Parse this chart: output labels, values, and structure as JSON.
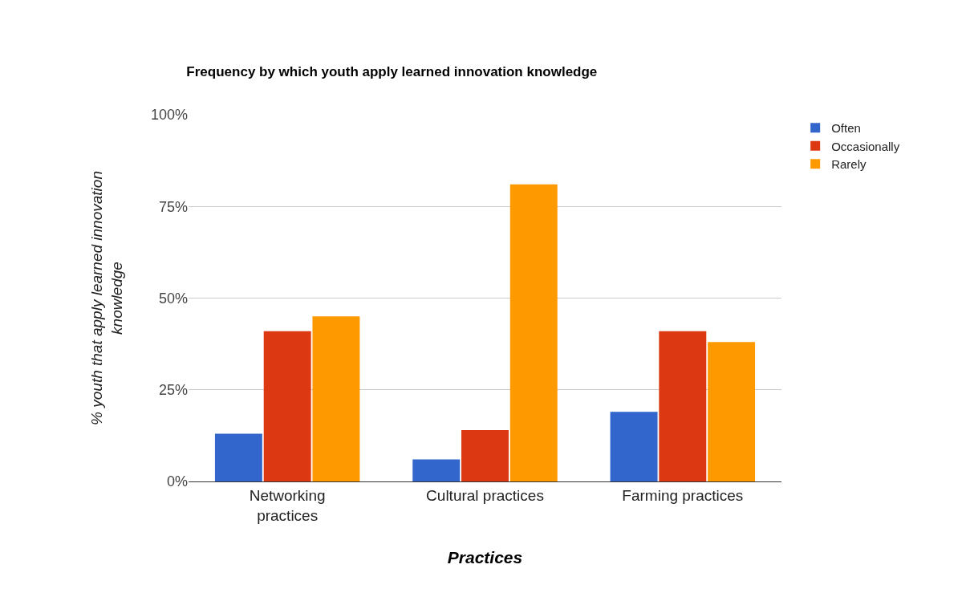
{
  "chart_data": {
    "type": "bar",
    "title": "Frequency by which youth apply learned innovation knowledge",
    "xlabel": "Practices",
    "ylabel": "% youth that apply learned innovation knowledge",
    "categories": [
      "Networking practices",
      "Cultural practices",
      "Farming practices"
    ],
    "series": [
      {
        "name": "Often",
        "color": "#3366cc",
        "values": [
          13,
          6,
          19
        ]
      },
      {
        "name": "Occasionally",
        "color": "#dc3912",
        "values": [
          41,
          14,
          41
        ]
      },
      {
        "name": "Rarely",
        "color": "#ff9900",
        "values": [
          45,
          81,
          38
        ]
      }
    ],
    "ylim": [
      0,
      100
    ],
    "yticks": [
      {
        "value": 0,
        "label": "0%"
      },
      {
        "value": 25,
        "label": "25%"
      },
      {
        "value": 50,
        "label": "50%"
      },
      {
        "value": 75,
        "label": "75%"
      },
      {
        "value": 100,
        "label": "100%"
      }
    ],
    "grid": "y",
    "legend": "top right"
  }
}
